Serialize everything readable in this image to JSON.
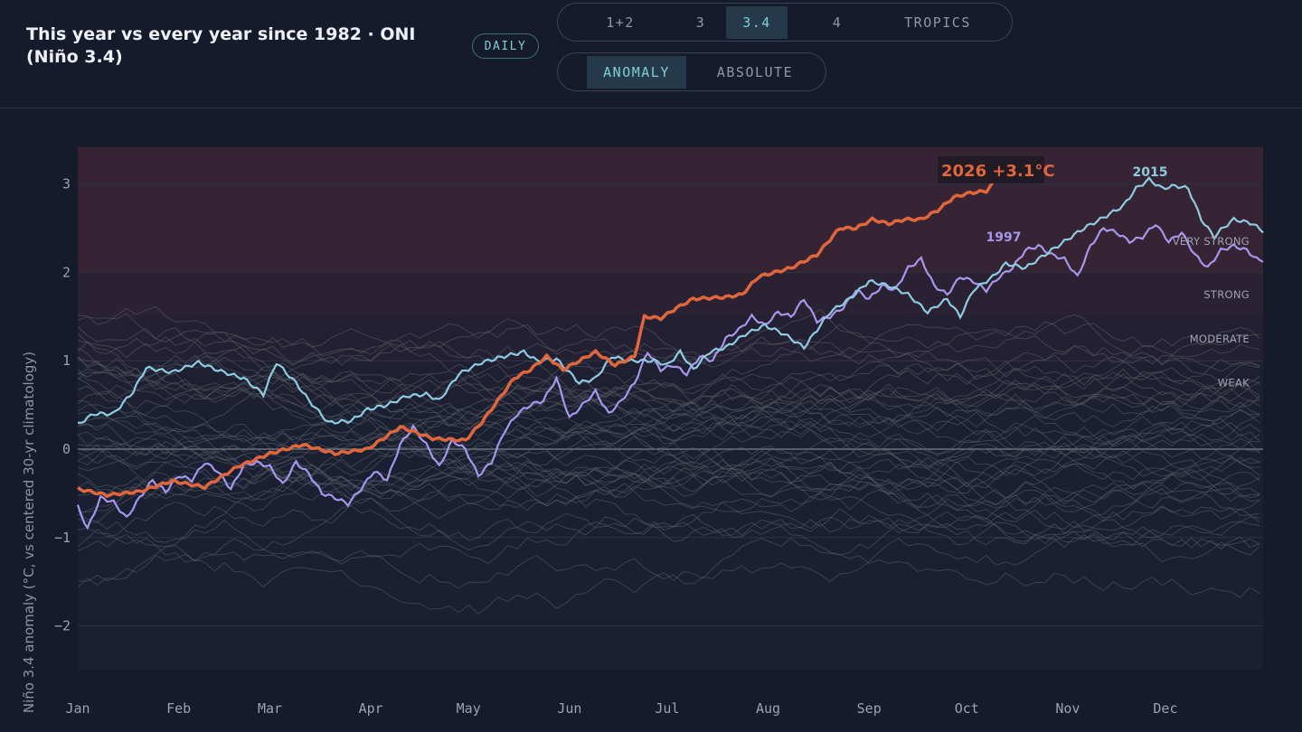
{
  "header": {
    "title": "This year vs every year since 1982 · ONI (Niño 3.4)",
    "badge": "DAILY"
  },
  "region_tabs": [
    {
      "label": "1+2",
      "active": false
    },
    {
      "label": "3",
      "active": false
    },
    {
      "label": "3.4",
      "active": true
    },
    {
      "label": "4",
      "active": false
    },
    {
      "label": "TROPICS",
      "active": false
    }
  ],
  "mode_tabs": [
    {
      "label": "ANOMALY",
      "active": true
    },
    {
      "label": "ABSOLUTE",
      "active": false
    }
  ],
  "colors": {
    "background": "#161b2c",
    "current": "#e0663c",
    "y2015": "#8fcbe0",
    "y1997": "#a797ec",
    "history": "#5b5f66",
    "accent": "#7ccfd6"
  },
  "chart_data": {
    "type": "line",
    "ylabel": "Niño 3.4 anomaly (°C, vs centered 30-yr climatology)",
    "ylim": [
      -2.5,
      3.5
    ],
    "yticks": [
      3,
      2,
      1,
      0,
      -1,
      -2
    ],
    "ytick_labels": [
      "3",
      "2",
      "1",
      "0",
      "−1",
      "−2"
    ],
    "months": [
      "Jan",
      "Feb",
      "Mar",
      "Apr",
      "May",
      "Jun",
      "Jul",
      "Aug",
      "Sep",
      "Oct",
      "Nov",
      "Dec"
    ],
    "intensity_bands": [
      {
        "label": "VERY STRONG",
        "from": 2.0,
        "value": 2.35
      },
      {
        "label": "STRONG",
        "from": 1.5,
        "value": 1.75
      },
      {
        "label": "MODERATE",
        "from": 1.0,
        "value": 1.25
      },
      {
        "label": "WEAK",
        "from": 0.5,
        "value": 0.75
      }
    ],
    "current": {
      "label": "2026 +3.1°C",
      "points": [
        [
          1,
          -0.45
        ],
        [
          10,
          -0.52
        ],
        [
          20,
          -0.48
        ],
        [
          30,
          -0.36
        ],
        [
          40,
          -0.43
        ],
        [
          50,
          -0.2
        ],
        [
          60,
          -0.05
        ],
        [
          70,
          0.05
        ],
        [
          80,
          -0.05
        ],
        [
          90,
          0.0
        ],
        [
          100,
          0.25
        ],
        [
          110,
          0.12
        ],
        [
          120,
          0.1
        ],
        [
          125,
          0.3
        ],
        [
          130,
          0.55
        ],
        [
          135,
          0.8
        ],
        [
          140,
          0.9
        ],
        [
          145,
          1.05
        ],
        [
          150,
          0.9
        ],
        [
          160,
          1.1
        ],
        [
          166,
          0.95
        ],
        [
          172,
          1.05
        ],
        [
          175,
          1.5
        ],
        [
          180,
          1.48
        ],
        [
          185,
          1.6
        ],
        [
          190,
          1.7
        ],
        [
          200,
          1.72
        ],
        [
          205,
          1.75
        ],
        [
          210,
          1.95
        ],
        [
          220,
          2.05
        ],
        [
          228,
          2.2
        ],
        [
          235,
          2.5
        ],
        [
          240,
          2.5
        ],
        [
          245,
          2.6
        ],
        [
          250,
          2.55
        ],
        [
          255,
          2.6
        ],
        [
          260,
          2.6
        ],
        [
          265,
          2.7
        ],
        [
          270,
          2.85
        ],
        [
          275,
          2.9
        ],
        [
          280,
          2.92
        ],
        [
          283,
          3.05
        ]
      ]
    },
    "series": [
      {
        "name": "2015",
        "points": [
          [
            1,
            0.28
          ],
          [
            6,
            0.4
          ],
          [
            12,
            0.4
          ],
          [
            18,
            0.65
          ],
          [
            22,
            0.92
          ],
          [
            30,
            0.87
          ],
          [
            38,
            0.98
          ],
          [
            45,
            0.88
          ],
          [
            52,
            0.8
          ],
          [
            58,
            0.62
          ],
          [
            62,
            0.98
          ],
          [
            68,
            0.75
          ],
          [
            72,
            0.55
          ],
          [
            78,
            0.3
          ],
          [
            85,
            0.32
          ],
          [
            90,
            0.45
          ],
          [
            96,
            0.5
          ],
          [
            102,
            0.6
          ],
          [
            108,
            0.62
          ],
          [
            112,
            0.55
          ],
          [
            118,
            0.85
          ],
          [
            125,
            0.98
          ],
          [
            132,
            1.05
          ],
          [
            138,
            1.1
          ],
          [
            142,
            1.0
          ],
          [
            148,
            1.02
          ],
          [
            155,
            0.75
          ],
          [
            160,
            0.8
          ],
          [
            165,
            1.05
          ],
          [
            170,
            1.0
          ],
          [
            178,
            1.0
          ],
          [
            182,
            0.95
          ],
          [
            186,
            1.1
          ],
          [
            190,
            0.9
          ],
          [
            195,
            1.1
          ],
          [
            200,
            1.15
          ],
          [
            206,
            1.3
          ],
          [
            212,
            1.4
          ],
          [
            218,
            1.3
          ],
          [
            224,
            1.15
          ],
          [
            228,
            1.35
          ],
          [
            232,
            1.55
          ],
          [
            238,
            1.7
          ],
          [
            244,
            1.9
          ],
          [
            250,
            1.85
          ],
          [
            256,
            1.75
          ],
          [
            262,
            1.55
          ],
          [
            268,
            1.7
          ],
          [
            272,
            1.5
          ],
          [
            276,
            1.8
          ],
          [
            282,
            1.95
          ],
          [
            286,
            2.1
          ],
          [
            292,
            2.05
          ],
          [
            298,
            2.2
          ],
          [
            304,
            2.35
          ],
          [
            310,
            2.5
          ],
          [
            316,
            2.62
          ],
          [
            322,
            2.75
          ],
          [
            326,
            2.95
          ],
          [
            330,
            3.05
          ],
          [
            334,
            2.95
          ],
          [
            338,
            2.98
          ],
          [
            342,
            2.95
          ],
          [
            346,
            2.6
          ],
          [
            350,
            2.4
          ],
          [
            352,
            2.48
          ],
          [
            356,
            2.6
          ],
          [
            362,
            2.55
          ],
          [
            365,
            2.45
          ]
        ]
      },
      {
        "name": "1997",
        "points": [
          [
            1,
            -0.65
          ],
          [
            4,
            -0.9
          ],
          [
            8,
            -0.55
          ],
          [
            12,
            -0.6
          ],
          [
            16,
            -0.78
          ],
          [
            20,
            -0.55
          ],
          [
            24,
            -0.35
          ],
          [
            28,
            -0.48
          ],
          [
            32,
            -0.3
          ],
          [
            36,
            -0.35
          ],
          [
            40,
            -0.15
          ],
          [
            44,
            -0.25
          ],
          [
            48,
            -0.45
          ],
          [
            52,
            -0.18
          ],
          [
            56,
            -0.15
          ],
          [
            60,
            -0.2
          ],
          [
            64,
            -0.4
          ],
          [
            68,
            -0.15
          ],
          [
            72,
            -0.28
          ],
          [
            76,
            -0.5
          ],
          [
            80,
            -0.55
          ],
          [
            84,
            -0.62
          ],
          [
            88,
            -0.45
          ],
          [
            92,
            -0.25
          ],
          [
            96,
            -0.35
          ],
          [
            100,
            0.05
          ],
          [
            104,
            0.25
          ],
          [
            108,
            0.05
          ],
          [
            112,
            -0.2
          ],
          [
            116,
            0.1
          ],
          [
            120,
            0.0
          ],
          [
            124,
            -0.3
          ],
          [
            128,
            -0.15
          ],
          [
            132,
            0.2
          ],
          [
            136,
            0.4
          ],
          [
            140,
            0.5
          ],
          [
            144,
            0.55
          ],
          [
            148,
            0.8
          ],
          [
            152,
            0.35
          ],
          [
            156,
            0.5
          ],
          [
            160,
            0.65
          ],
          [
            164,
            0.4
          ],
          [
            168,
            0.55
          ],
          [
            172,
            0.75
          ],
          [
            176,
            1.1
          ],
          [
            180,
            0.9
          ],
          [
            184,
            0.95
          ],
          [
            188,
            0.85
          ],
          [
            192,
            1.05
          ],
          [
            196,
            1.0
          ],
          [
            200,
            1.25
          ],
          [
            204,
            1.35
          ],
          [
            208,
            1.5
          ],
          [
            212,
            1.4
          ],
          [
            216,
            1.55
          ],
          [
            220,
            1.5
          ],
          [
            224,
            1.7
          ],
          [
            228,
            1.45
          ],
          [
            232,
            1.5
          ],
          [
            236,
            1.6
          ],
          [
            240,
            1.8
          ],
          [
            244,
            1.7
          ],
          [
            248,
            1.85
          ],
          [
            252,
            1.8
          ],
          [
            256,
            2.05
          ],
          [
            260,
            2.15
          ],
          [
            264,
            1.85
          ],
          [
            268,
            1.75
          ],
          [
            272,
            1.95
          ],
          [
            276,
            1.9
          ],
          [
            280,
            1.8
          ],
          [
            284,
            1.95
          ],
          [
            288,
            2.05
          ],
          [
            292,
            2.25
          ],
          [
            296,
            2.3
          ],
          [
            300,
            2.2
          ],
          [
            304,
            2.15
          ],
          [
            308,
            1.95
          ],
          [
            312,
            2.3
          ],
          [
            316,
            2.5
          ],
          [
            320,
            2.45
          ],
          [
            324,
            2.35
          ],
          [
            328,
            2.4
          ],
          [
            332,
            2.55
          ],
          [
            336,
            2.35
          ],
          [
            340,
            2.45
          ],
          [
            344,
            2.2
          ],
          [
            348,
            2.05
          ],
          [
            352,
            2.25
          ],
          [
            356,
            2.3
          ],
          [
            360,
            2.25
          ],
          [
            363,
            2.15
          ],
          [
            365,
            2.12
          ]
        ]
      }
    ],
    "history_count": 43
  }
}
